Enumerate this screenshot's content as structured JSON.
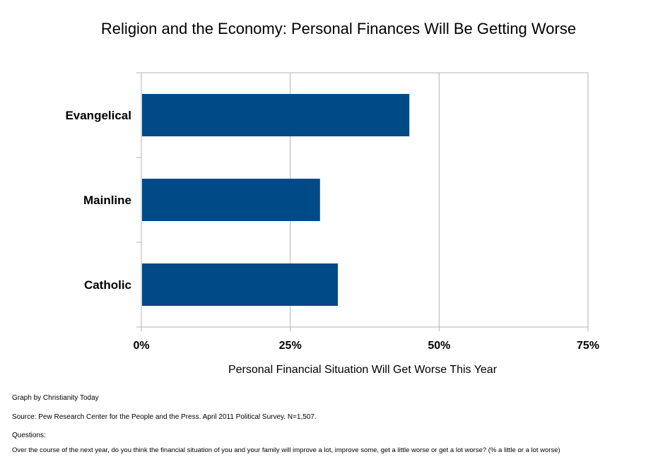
{
  "chart_data": {
    "type": "bar",
    "orientation": "horizontal",
    "title": "Religion and the Economy: Personal Finances Will Be Getting Worse",
    "categories": [
      "Evangelical",
      "Mainline",
      "Catholic"
    ],
    "values": [
      45,
      30,
      33
    ],
    "xlabel": "Personal Financial Situation Will Get Worse This Year",
    "ylabel": "",
    "xlim": [
      0,
      75
    ],
    "xticks": [
      0,
      25,
      50,
      75
    ],
    "xtick_labels": [
      "0%",
      "25%",
      "50%",
      "75%"
    ],
    "bar_color": "#004A87",
    "grid": true,
    "legend": "none"
  },
  "notes": {
    "credit": "Graph by Christianity Today",
    "source": "Source: Pew Research Center for the People and the Press.  April 2011 Political Survey.  N=1,507.",
    "questions_label": "Questions:",
    "question": "Over the course of the next year, do you think the financial situation of you and your family will improve a lot, improve some, get a little worse or get a lot worse? (% a little or a lot worse)"
  }
}
